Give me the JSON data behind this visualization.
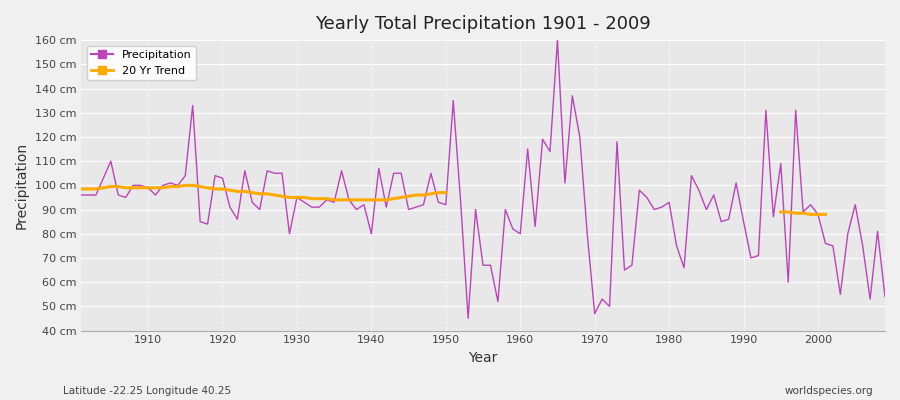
{
  "title": "Yearly Total Precipitation 1901 - 2009",
  "xlabel": "Year",
  "ylabel": "Precipitation",
  "subtitle": "Latitude -22.25 Longitude 40.25",
  "watermark": "worldspecies.org",
  "line_color": "#bb44bb",
  "trend_color": "#ffaa00",
  "bg_color": "#f0f0f0",
  "plot_bg_color": "#e8e8e8",
  "ylim": [
    40,
    160
  ],
  "yticks": [
    40,
    50,
    60,
    70,
    80,
    90,
    100,
    110,
    120,
    130,
    140,
    150,
    160
  ],
  "years": [
    1901,
    1902,
    1903,
    1904,
    1905,
    1906,
    1907,
    1908,
    1909,
    1910,
    1911,
    1912,
    1913,
    1914,
    1915,
    1916,
    1917,
    1918,
    1919,
    1920,
    1921,
    1922,
    1923,
    1924,
    1925,
    1926,
    1927,
    1928,
    1929,
    1930,
    1931,
    1932,
    1933,
    1934,
    1935,
    1936,
    1937,
    1938,
    1939,
    1940,
    1941,
    1942,
    1943,
    1944,
    1945,
    1946,
    1947,
    1948,
    1949,
    1950,
    1951,
    1952,
    1953,
    1954,
    1955,
    1956,
    1957,
    1958,
    1959,
    1960,
    1961,
    1962,
    1963,
    1964,
    1965,
    1966,
    1967,
    1968,
    1969,
    1970,
    1971,
    1972,
    1973,
    1974,
    1975,
    1976,
    1977,
    1978,
    1979,
    1980,
    1981,
    1982,
    1983,
    1984,
    1985,
    1986,
    1987,
    1988,
    1989,
    1990,
    1991,
    1992,
    1993,
    1994,
    1995,
    1996,
    1997,
    1998,
    1999,
    2000,
    2001,
    2002,
    2003,
    2004,
    2005,
    2006,
    2007,
    2008,
    2009
  ],
  "precip": [
    96,
    96,
    96,
    103,
    110,
    96,
    95,
    100,
    100,
    99,
    96,
    100,
    101,
    100,
    104,
    133,
    85,
    84,
    104,
    103,
    91,
    86,
    106,
    93,
    90,
    106,
    105,
    105,
    80,
    95,
    93,
    91,
    91,
    94,
    93,
    106,
    94,
    90,
    92,
    80,
    107,
    91,
    105,
    105,
    90,
    91,
    92,
    105,
    93,
    92,
    135,
    93,
    45,
    90,
    67,
    67,
    52,
    90,
    82,
    80,
    115,
    83,
    119,
    114,
    160,
    101,
    137,
    120,
    80,
    47,
    53,
    50,
    118,
    65,
    67,
    98,
    95,
    90,
    91,
    93,
    75,
    66,
    104,
    98,
    90,
    96,
    85,
    86,
    101,
    85,
    70,
    71,
    131,
    87,
    109,
    60,
    131,
    89,
    92,
    88,
    76,
    75,
    55,
    80,
    92,
    75,
    53,
    81,
    54
  ],
  "trend_seg1_years": [
    1901,
    1902,
    1903,
    1904,
    1905,
    1906,
    1907,
    1908,
    1909,
    1910,
    1911,
    1912,
    1913,
    1914,
    1915,
    1916,
    1917,
    1918,
    1919,
    1920,
    1921,
    1922,
    1923,
    1924,
    1925,
    1926,
    1927,
    1928,
    1929,
    1930,
    1931,
    1932,
    1933,
    1934,
    1935,
    1936,
    1937,
    1938,
    1939,
    1940,
    1941,
    1942,
    1943,
    1944,
    1945,
    1946,
    1947,
    1948,
    1949,
    1950
  ],
  "trend_seg1_vals": [
    98.5,
    98.5,
    98.5,
    99,
    99.5,
    99.5,
    99,
    99,
    99,
    99,
    99,
    99,
    99.5,
    99.5,
    100,
    100,
    99.5,
    99,
    98.5,
    98.5,
    98,
    97.5,
    97.5,
    97,
    96.5,
    96.5,
    96,
    95.5,
    95,
    95,
    95,
    94.5,
    94.5,
    94.5,
    94,
    94,
    94,
    94,
    94,
    94,
    94,
    94,
    94.5,
    95,
    95.5,
    96,
    96,
    96.5,
    97,
    97
  ],
  "trend_seg2_years": [
    1995,
    1996,
    1997,
    1998,
    1999,
    2000,
    2001
  ],
  "trend_seg2_vals": [
    89,
    89,
    88.5,
    88.5,
    88,
    88,
    88
  ]
}
